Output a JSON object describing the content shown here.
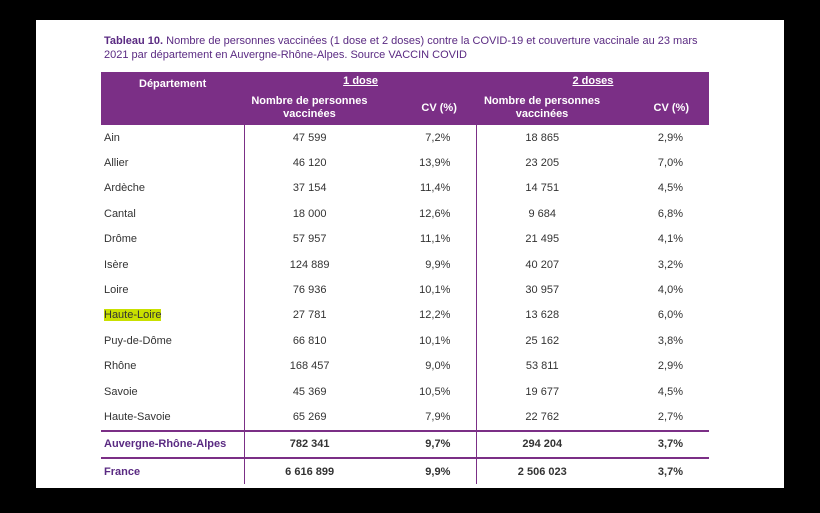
{
  "caption": {
    "label": "Tableau 10.",
    "text": " Nombre de personnes vaccinées (1 dose et 2 doses) contre la COVID-19 et couverture vaccinale au 23 mars 2021 par département en Auvergne-Rhône-Alpes. Source VACCIN COVID"
  },
  "headers": {
    "departement": "Département",
    "dose1": "1 dose",
    "dose2": "2 doses",
    "nombre": "Nombre de personnes vaccinées",
    "cv": "CV (%)"
  },
  "rows": [
    {
      "dep": "Ain",
      "n1": "47 599",
      "c1": "7,2%",
      "n2": "18 865",
      "c2": "2,9%"
    },
    {
      "dep": "Allier",
      "n1": "46 120",
      "c1": "13,9%",
      "n2": "23 205",
      "c2": "7,0%"
    },
    {
      "dep": "Ardèche",
      "n1": "37 154",
      "c1": "11,4%",
      "n2": "14 751",
      "c2": "4,5%"
    },
    {
      "dep": "Cantal",
      "n1": "18 000",
      "c1": "12,6%",
      "n2": "9 684",
      "c2": "6,8%"
    },
    {
      "dep": "Drôme",
      "n1": "57 957",
      "c1": "11,1%",
      "n2": "21 495",
      "c2": "4,1%"
    },
    {
      "dep": "Isère",
      "n1": "124 889",
      "c1": "9,9%",
      "n2": "40 207",
      "c2": "3,2%"
    },
    {
      "dep": "Loire",
      "n1": "76 936",
      "c1": "10,1%",
      "n2": "30 957",
      "c2": "4,0%"
    },
    {
      "dep": "Haute-Loire",
      "n1": "27 781",
      "c1": "12,2%",
      "n2": "13 628",
      "c2": "6,0%"
    },
    {
      "dep": "Puy-de-Dôme",
      "n1": "66 810",
      "c1": "10,1%",
      "n2": "25 162",
      "c2": "3,8%"
    },
    {
      "dep": "Rhône",
      "n1": "168 457",
      "c1": "9,0%",
      "n2": "53 811",
      "c2": "2,9%"
    },
    {
      "dep": "Savoie",
      "n1": "45 369",
      "c1": "10,5%",
      "n2": "19 677",
      "c2": "4,5%"
    },
    {
      "dep": "Haute-Savoie",
      "n1": "65 269",
      "c1": "7,9%",
      "n2": "22 762",
      "c2": "2,7%"
    }
  ],
  "totals": [
    {
      "dep": "Auvergne-Rhône-Alpes",
      "n1": "782 341",
      "c1": "9,7%",
      "n2": "294 204",
      "c2": "3,7%"
    },
    {
      "dep": "France",
      "n1": "6 616 899",
      "c1": "9,9%",
      "n2": "2 506 023",
      "c2": "3,7%"
    }
  ],
  "highlight_color": "#c9e000",
  "accent_color": "#7b2f86"
}
